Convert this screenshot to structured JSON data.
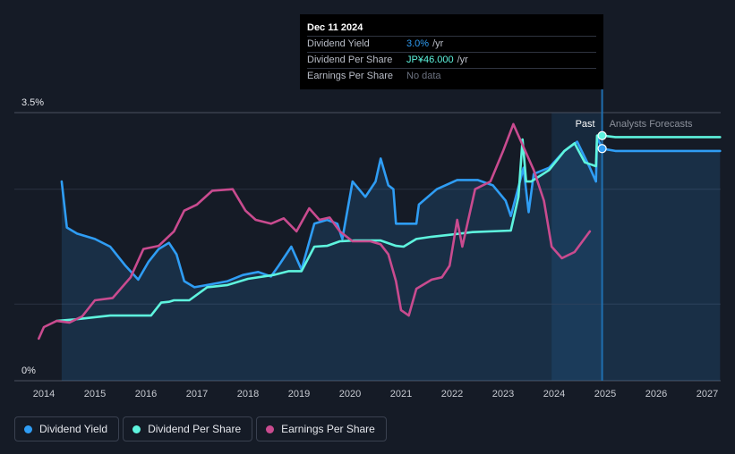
{
  "tooltip": {
    "date": "Dec 11 2024",
    "rows": [
      {
        "label": "Dividend Yield",
        "value": "3.0%",
        "unit": "/yr"
      },
      {
        "label": "Dividend Per Share",
        "value": "JP¥46.000",
        "unit": "/yr"
      },
      {
        "label": "Earnings Per Share",
        "value": "No data"
      }
    ]
  },
  "legend": [
    {
      "label": "Dividend Yield",
      "color": "#2f9df4"
    },
    {
      "label": "Dividend Per Share",
      "color": "#5ef4de"
    },
    {
      "label": "Earnings Per Share",
      "color": "#c94b8f"
    }
  ],
  "chart_data": {
    "type": "line",
    "x_ticks": [
      "2014",
      "2015",
      "2016",
      "2017",
      "2018",
      "2019",
      "2020",
      "2021",
      "2022",
      "2023",
      "2024",
      "2025",
      "2026",
      "2027"
    ],
    "y_ticks": [
      "3.5%",
      "0%"
    ],
    "ylim": [
      0,
      3.5
    ],
    "xlim": [
      2013.9,
      2027.25
    ],
    "divider_x": 2024.94,
    "past_label": "Past",
    "forecast_label": "Analysts Forecasts",
    "colors": {
      "yield": "#2f9df4",
      "dps": "#5ef4de",
      "eps": "#c94b8f"
    },
    "series": [
      {
        "name": "Dividend Yield",
        "key": "yield",
        "area": true,
        "points": [
          [
            2014.35,
            2.6
          ],
          [
            2014.45,
            2.0
          ],
          [
            2014.65,
            1.92
          ],
          [
            2015.0,
            1.85
          ],
          [
            2015.3,
            1.75
          ],
          [
            2015.6,
            1.5
          ],
          [
            2015.85,
            1.32
          ],
          [
            2016.05,
            1.55
          ],
          [
            2016.25,
            1.72
          ],
          [
            2016.45,
            1.8
          ],
          [
            2016.6,
            1.65
          ],
          [
            2016.75,
            1.3
          ],
          [
            2016.95,
            1.22
          ],
          [
            2017.2,
            1.25
          ],
          [
            2017.6,
            1.3
          ],
          [
            2017.9,
            1.38
          ],
          [
            2018.2,
            1.42
          ],
          [
            2018.45,
            1.36
          ],
          [
            2018.6,
            1.5
          ],
          [
            2018.85,
            1.75
          ],
          [
            2019.05,
            1.45
          ],
          [
            2019.3,
            2.05
          ],
          [
            2019.55,
            2.1
          ],
          [
            2019.75,
            2.05
          ],
          [
            2019.85,
            1.85
          ],
          [
            2020.05,
            2.6
          ],
          [
            2020.3,
            2.4
          ],
          [
            2020.5,
            2.6
          ],
          [
            2020.6,
            2.9
          ],
          [
            2020.75,
            2.55
          ],
          [
            2020.85,
            2.5
          ],
          [
            2020.9,
            2.05
          ],
          [
            2021.3,
            2.05
          ],
          [
            2021.35,
            2.3
          ],
          [
            2021.7,
            2.5
          ],
          [
            2022.1,
            2.62
          ],
          [
            2022.5,
            2.62
          ],
          [
            2022.8,
            2.55
          ],
          [
            2023.05,
            2.35
          ],
          [
            2023.15,
            2.15
          ],
          [
            2023.4,
            2.78
          ],
          [
            2023.5,
            2.2
          ],
          [
            2023.6,
            2.7
          ],
          [
            2023.9,
            2.78
          ],
          [
            2024.2,
            3.0
          ],
          [
            2024.45,
            3.12
          ],
          [
            2024.7,
            2.78
          ],
          [
            2024.82,
            2.6
          ],
          [
            2024.84,
            3.18
          ],
          [
            2024.94,
            3.03
          ],
          [
            2025.2,
            3.0
          ],
          [
            2027.25,
            3.0
          ]
        ]
      },
      {
        "name": "Dividend Per Share",
        "key": "dps",
        "area": false,
        "points": [
          [
            2014.25,
            0.78
          ],
          [
            2014.6,
            0.8
          ],
          [
            2015.0,
            0.83
          ],
          [
            2015.3,
            0.85
          ],
          [
            2015.8,
            0.85
          ],
          [
            2016.1,
            0.85
          ],
          [
            2016.3,
            1.02
          ],
          [
            2016.45,
            1.03
          ],
          [
            2016.55,
            1.05
          ],
          [
            2016.85,
            1.05
          ],
          [
            2017.2,
            1.22
          ],
          [
            2017.6,
            1.25
          ],
          [
            2018.0,
            1.33
          ],
          [
            2018.5,
            1.38
          ],
          [
            2018.8,
            1.43
          ],
          [
            2019.05,
            1.43
          ],
          [
            2019.3,
            1.75
          ],
          [
            2019.55,
            1.76
          ],
          [
            2019.8,
            1.82
          ],
          [
            2020.1,
            1.83
          ],
          [
            2020.6,
            1.83
          ],
          [
            2020.9,
            1.76
          ],
          [
            2021.05,
            1.75
          ],
          [
            2021.3,
            1.85
          ],
          [
            2021.6,
            1.88
          ],
          [
            2021.9,
            1.9
          ],
          [
            2022.4,
            1.94
          ],
          [
            2023.15,
            1.96
          ],
          [
            2023.3,
            2.4
          ],
          [
            2023.38,
            3.15
          ],
          [
            2023.45,
            2.6
          ],
          [
            2023.55,
            2.6
          ],
          [
            2023.9,
            2.75
          ],
          [
            2024.2,
            3.0
          ],
          [
            2024.4,
            3.1
          ],
          [
            2024.6,
            2.85
          ],
          [
            2024.82,
            2.8
          ],
          [
            2024.84,
            3.2
          ],
          [
            2024.94,
            3.2
          ],
          [
            2025.2,
            3.18
          ],
          [
            2027.25,
            3.18
          ]
        ]
      },
      {
        "name": "Earnings Per Share",
        "key": "eps",
        "area": false,
        "points": [
          [
            2013.9,
            0.55
          ],
          [
            2014.0,
            0.7
          ],
          [
            2014.25,
            0.78
          ],
          [
            2014.5,
            0.76
          ],
          [
            2014.75,
            0.84
          ],
          [
            2015.0,
            1.05
          ],
          [
            2015.35,
            1.08
          ],
          [
            2015.7,
            1.35
          ],
          [
            2015.95,
            1.72
          ],
          [
            2016.25,
            1.76
          ],
          [
            2016.55,
            1.95
          ],
          [
            2016.75,
            2.22
          ],
          [
            2017.0,
            2.3
          ],
          [
            2017.3,
            2.48
          ],
          [
            2017.7,
            2.5
          ],
          [
            2017.95,
            2.22
          ],
          [
            2018.15,
            2.1
          ],
          [
            2018.45,
            2.05
          ],
          [
            2018.7,
            2.12
          ],
          [
            2018.95,
            1.95
          ],
          [
            2019.2,
            2.25
          ],
          [
            2019.4,
            2.1
          ],
          [
            2019.6,
            2.13
          ],
          [
            2019.8,
            1.95
          ],
          [
            2020.05,
            1.82
          ],
          [
            2020.4,
            1.82
          ],
          [
            2020.6,
            1.78
          ],
          [
            2020.75,
            1.65
          ],
          [
            2020.9,
            1.3
          ],
          [
            2021.0,
            0.92
          ],
          [
            2021.15,
            0.85
          ],
          [
            2021.3,
            1.2
          ],
          [
            2021.6,
            1.32
          ],
          [
            2021.8,
            1.35
          ],
          [
            2021.95,
            1.5
          ],
          [
            2022.1,
            2.1
          ],
          [
            2022.2,
            1.75
          ],
          [
            2022.45,
            2.5
          ],
          [
            2022.75,
            2.6
          ],
          [
            2023.0,
            3.0
          ],
          [
            2023.2,
            3.35
          ],
          [
            2023.4,
            3.05
          ],
          [
            2023.6,
            2.75
          ],
          [
            2023.8,
            2.35
          ],
          [
            2023.95,
            1.75
          ],
          [
            2024.15,
            1.6
          ],
          [
            2024.4,
            1.68
          ],
          [
            2024.7,
            1.95
          ]
        ]
      }
    ]
  }
}
